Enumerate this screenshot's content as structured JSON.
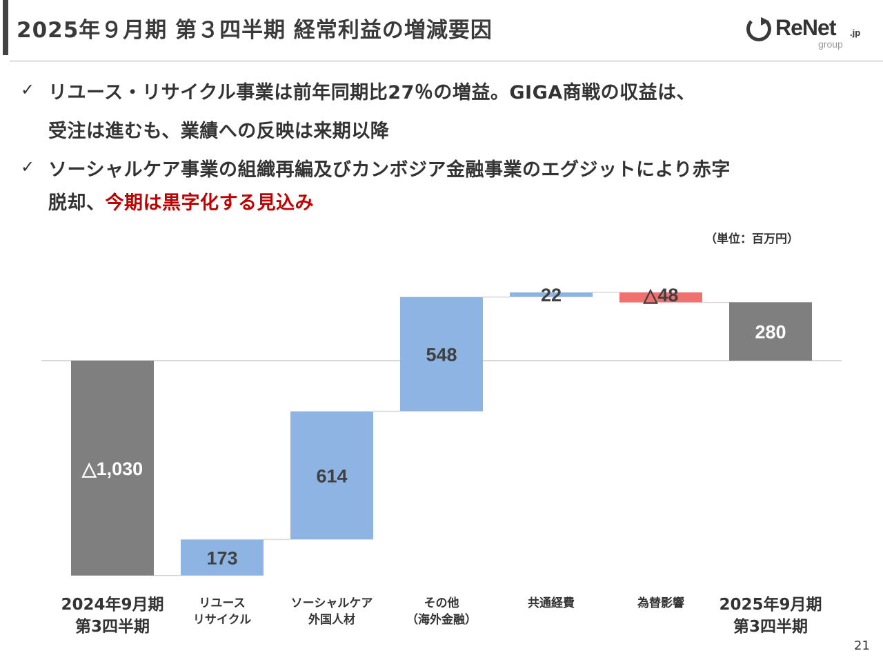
{
  "header": {
    "title": "2025年９月期 第３四半期 経常利益の増減要因",
    "logo": {
      "brand": "ReNet",
      "tld": ".jp",
      "sub": "group"
    }
  },
  "bullets": [
    {
      "check": "✓",
      "line1": "リユース・リサイクル事業は前年同期比27％の増益。GIGA商戦の収益は、",
      "line2": "受注は進むも、業績への反映は来期以降",
      "line2_highlight": ""
    },
    {
      "check": "✓",
      "line1": "ソーシャルケア事業の組織再編及びカンボジア金融事業のエグジットにより赤字",
      "line2": "脱却、",
      "line2_highlight": "今期は黒字化する見込み"
    }
  ],
  "unit_note": "（単位：百万円）",
  "page_number": "21",
  "colors": {
    "total_bar": "#7f7f7f",
    "increase_bar": "#8eb4e3",
    "decrease_bar": "#f07070",
    "accent_red": "#c00000",
    "text": "#333333"
  },
  "chart_data": {
    "type": "bar",
    "subtype": "waterfall",
    "title": "",
    "xlabel": "",
    "ylabel": "",
    "unit": "百万円",
    "grid": false,
    "zero_line": true,
    "categories": [
      {
        "line1": "2024年9月期",
        "line2": "第3四半期",
        "big": true
      },
      {
        "line1": "リユース",
        "line2": "リサイクル",
        "big": false
      },
      {
        "line1": "ソーシャルケア",
        "line2": "外国人材",
        "big": false
      },
      {
        "line1": "その他",
        "line2": "（海外金融）",
        "big": false
      },
      {
        "line1": "共通経費",
        "line2": "",
        "big": false
      },
      {
        "line1": "為替影響",
        "line2": "",
        "big": false
      },
      {
        "line1": "2025年9月期",
        "line2": "第3四半期",
        "big": true
      }
    ],
    "steps": [
      {
        "kind": "total",
        "value": -1030,
        "label": "△1,030"
      },
      {
        "kind": "delta",
        "value": 173,
        "label": "173"
      },
      {
        "kind": "delta",
        "value": 614,
        "label": "614"
      },
      {
        "kind": "delta",
        "value": 548,
        "label": "548"
      },
      {
        "kind": "delta",
        "value": 22,
        "label": "22"
      },
      {
        "kind": "delta",
        "value": -48,
        "label": "△48"
      },
      {
        "kind": "total",
        "value": 280,
        "label": "280"
      }
    ]
  }
}
